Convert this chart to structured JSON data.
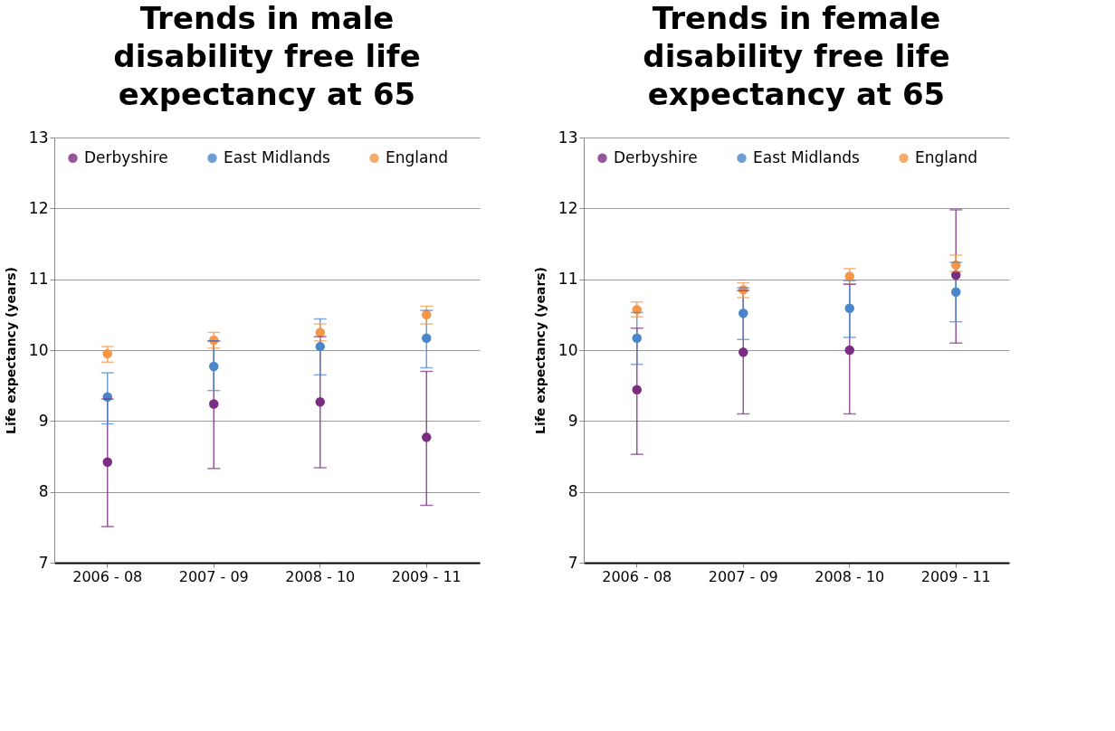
{
  "chart_data": [
    {
      "type": "scatter",
      "title": "Trends in male disability free life expectancy at 65",
      "ylabel": "Life expectancy (years)",
      "categories": [
        "2006 - 08",
        "2007 - 09",
        "2008 - 10",
        "2009 - 11"
      ],
      "ylim": [
        7,
        13
      ],
      "yticks": [
        7,
        8,
        9,
        10,
        11,
        12,
        13
      ],
      "grid": "y",
      "legend": "top",
      "marker": "circle",
      "series": [
        {
          "name": "Derbyshire",
          "color": "#7b2c83",
          "values": [
            8.42,
            9.24,
            9.27,
            8.77
          ],
          "errors": [
            [
              7.51,
              9.31
            ],
            [
              8.33,
              10.13
            ],
            [
              8.34,
              10.19
            ],
            [
              7.81,
              9.7
            ]
          ]
        },
        {
          "name": "East Midlands",
          "color": "#4a86c8",
          "values": [
            9.34,
            9.77,
            10.05,
            10.17
          ],
          "errors": [
            [
              8.96,
              9.68
            ],
            [
              9.43,
              10.13
            ],
            [
              9.65,
              10.44
            ],
            [
              9.75,
              10.56
            ]
          ]
        },
        {
          "name": "England",
          "color": "#f79646",
          "values": [
            9.95,
            10.14,
            10.25,
            10.5
          ],
          "errors": [
            [
              9.83,
              10.05
            ],
            [
              10.03,
              10.25
            ],
            [
              10.13,
              10.37
            ],
            [
              10.37,
              10.62
            ]
          ]
        }
      ]
    },
    {
      "type": "scatter",
      "title": "Trends in female disability free life expectancy at 65",
      "ylabel": "Life expectancy (years)",
      "categories": [
        "2006 - 08",
        "2007 - 09",
        "2008 - 10",
        "2009 - 11"
      ],
      "ylim": [
        7,
        13
      ],
      "yticks": [
        7,
        8,
        9,
        10,
        11,
        12,
        13
      ],
      "grid": "y",
      "legend": "top",
      "marker": "circle",
      "series": [
        {
          "name": "Derbyshire",
          "color": "#7b2c83",
          "values": [
            9.44,
            9.97,
            10.0,
            11.06
          ],
          "errors": [
            [
              8.53,
              10.31
            ],
            [
              9.1,
              10.84
            ],
            [
              9.1,
              10.93
            ],
            [
              10.1,
              11.98
            ]
          ]
        },
        {
          "name": "East Midlands",
          "color": "#4a86c8",
          "values": [
            10.17,
            10.52,
            10.59,
            10.82
          ],
          "errors": [
            [
              9.8,
              10.53
            ],
            [
              10.15,
              10.88
            ],
            [
              10.18,
              10.98
            ],
            [
              10.4,
              11.24
            ]
          ]
        },
        {
          "name": "England",
          "color": "#f79646",
          "values": [
            10.57,
            10.85,
            11.04,
            11.2
          ],
          "errors": [
            [
              10.47,
              10.68
            ],
            [
              10.74,
              10.95
            ],
            [
              10.93,
              11.15
            ],
            [
              11.11,
              11.34
            ]
          ]
        }
      ]
    }
  ]
}
